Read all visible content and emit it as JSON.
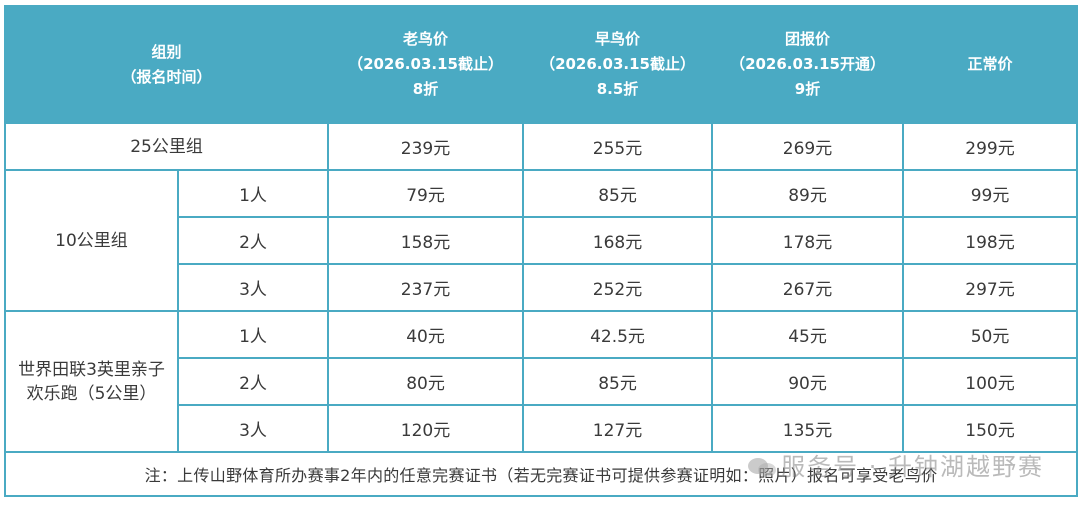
{
  "header": {
    "group": [
      "组别",
      "（报名时间）"
    ],
    "old": [
      "老鸟价",
      "（2026.03.15截止）",
      "8折"
    ],
    "early": [
      "早鸟价",
      "（2026.03.15截止）",
      "8.5折"
    ],
    "team": [
      "团报价",
      "（2026.03.15开通）",
      "9折"
    ],
    "normal": "正常价"
  },
  "rows": {
    "g25": {
      "name": "25公里组",
      "prices": [
        "239元",
        "255元",
        "269元",
        "299元"
      ]
    },
    "g10": {
      "name": "10公里组",
      "subs": [
        {
          "people": "1人",
          "prices": [
            "79元",
            "85元",
            "89元",
            "99元"
          ]
        },
        {
          "people": "2人",
          "prices": [
            "158元",
            "168元",
            "178元",
            "198元"
          ]
        },
        {
          "people": "3人",
          "prices": [
            "237元",
            "252元",
            "267元",
            "297元"
          ]
        }
      ]
    },
    "g5": {
      "name": [
        "世界田联3英里亲子",
        "欢乐跑（5公里）"
      ],
      "subs": [
        {
          "people": "1人",
          "prices": [
            "40元",
            "42.5元",
            "45元",
            "50元"
          ]
        },
        {
          "people": "2人",
          "prices": [
            "80元",
            "85元",
            "90元",
            "100元"
          ]
        },
        {
          "people": "3人",
          "prices": [
            "120元",
            "127元",
            "135元",
            "150元"
          ]
        }
      ]
    }
  },
  "note": "注：上传山野体育所办赛事2年内的任意完赛证书（若无完赛证书可提供参赛证明如：照片）报名可享受老鸟价",
  "watermark": "服务号 · 升钟湖越野赛",
  "colors": {
    "header_bg": "#4aaac3",
    "border": "#4aaac3"
  }
}
